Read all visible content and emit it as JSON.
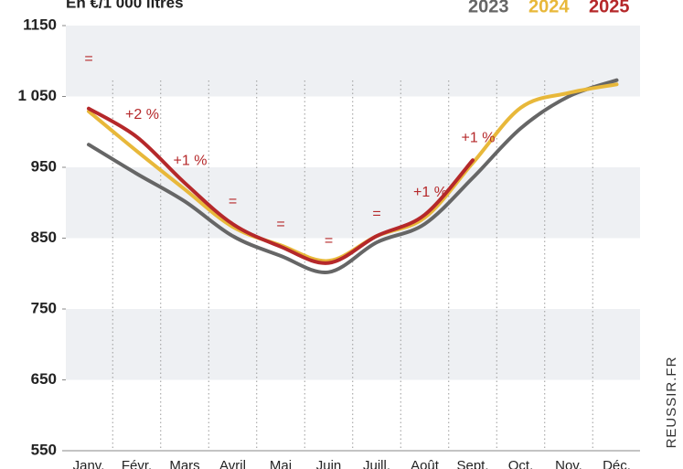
{
  "chart_data": {
    "type": "line",
    "title": "En €/1 000 litres",
    "source": "REUSSIR.FR",
    "categories": [
      "Janv.",
      "Févr.",
      "Mars",
      "Avril",
      "Mai",
      "Juin",
      "Juill.",
      "Août",
      "Sept.",
      "Oct.",
      "Nov.",
      "Déc."
    ],
    "series": [
      {
        "name": "2023",
        "color": "#666666",
        "values": [
          982,
          941,
          902,
          853,
          825,
          802,
          844,
          870,
          935,
          1005,
          1050,
          1073
        ]
      },
      {
        "name": "2024",
        "color": "#e8b83a",
        "values": [
          1029,
          973,
          919,
          866,
          840,
          818,
          853,
          879,
          956,
          1034,
          1055,
          1067
        ]
      },
      {
        "name": "2025",
        "color": "#b5282a",
        "values": [
          1033,
          993,
          928,
          870,
          838,
          815,
          853,
          883,
          960,
          null,
          null,
          null
        ]
      }
    ],
    "annotations": [
      "=",
      "+2 %",
      "+1 %",
      "=",
      "=",
      "=",
      "=",
      "+1 %",
      "+1 %",
      null,
      null,
      null
    ],
    "ylim": [
      550,
      1150
    ],
    "yticks": [
      550,
      650,
      750,
      850,
      950,
      {
        "value": 1050,
        "label": "1 050"
      },
      1150
    ],
    "grid": true
  }
}
